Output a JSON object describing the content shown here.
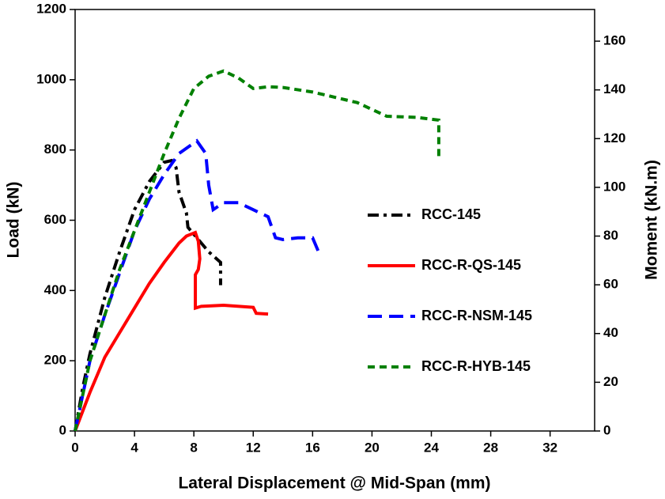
{
  "chart_data": {
    "type": "line",
    "x_label": "Lateral Displacement @ Mid-Span (mm)",
    "y_label": "Load (kN)",
    "y2_label": "Moment (kN.m)",
    "xlim": [
      0,
      35
    ],
    "xticks": [
      0,
      4,
      8,
      12,
      16,
      20,
      24,
      28,
      32
    ],
    "ylim": [
      0,
      1200
    ],
    "yticks": [
      0,
      200,
      400,
      600,
      800,
      1000,
      1200
    ],
    "y2lim": [
      0,
      173
    ],
    "y2ticks": [
      0,
      20,
      40,
      60,
      80,
      100,
      120,
      140,
      160
    ],
    "legend": "center-right",
    "series": [
      {
        "name": "RCC-145",
        "color": "#000000",
        "dash": "dashdot",
        "x": [
          0,
          0.5,
          1,
          2,
          3,
          4,
          5,
          6,
          6.5,
          6.8,
          7,
          7.5,
          7.6,
          8,
          9,
          9.8,
          9.8
        ],
        "values": [
          0,
          120,
          220,
          380,
          510,
          630,
          710,
          765,
          770,
          750,
          680,
          620,
          580,
          560,
          510,
          480,
          415
        ]
      },
      {
        "name": "RCC-R-QS-145",
        "color": "#ff0000",
        "dash": "solid",
        "x": [
          0,
          1,
          2,
          3,
          4,
          5,
          6,
          7,
          7.5,
          7.8,
          8.1,
          8.3,
          8.4,
          8.3,
          8.1,
          8.1,
          8.5,
          10,
          12,
          12.2,
          13
        ],
        "values": [
          0,
          110,
          210,
          280,
          350,
          420,
          480,
          535,
          555,
          560,
          565,
          540,
          490,
          460,
          445,
          350,
          355,
          358,
          352,
          335,
          333
        ]
      },
      {
        "name": "RCC-R-NSM-145",
        "color": "#0000ff",
        "dash": "dashed",
        "x": [
          0,
          0.5,
          1,
          2,
          3,
          4,
          5,
          6,
          7,
          8.2,
          8.8,
          9,
          9.3,
          10,
          11,
          12,
          13,
          13.5,
          14,
          15,
          16,
          16.5
        ],
        "values": [
          0,
          100,
          200,
          330,
          450,
          570,
          660,
          730,
          790,
          826,
          790,
          700,
          630,
          650,
          650,
          630,
          610,
          550,
          545,
          550,
          550,
          500
        ]
      },
      {
        "name": "RCC-R-HYB-145",
        "color": "#008000",
        "dash": "shortdash",
        "x": [
          0,
          0.5,
          1,
          2,
          3,
          4,
          5,
          6,
          7,
          8,
          9,
          10,
          11,
          12,
          13,
          14,
          16,
          19,
          21,
          23,
          24.5,
          24.5
        ],
        "values": [
          0,
          100,
          200,
          330,
          460,
          570,
          680,
          790,
          890,
          975,
          1010,
          1025,
          1005,
          975,
          980,
          978,
          965,
          935,
          896,
          893,
          885,
          781
        ]
      }
    ]
  }
}
